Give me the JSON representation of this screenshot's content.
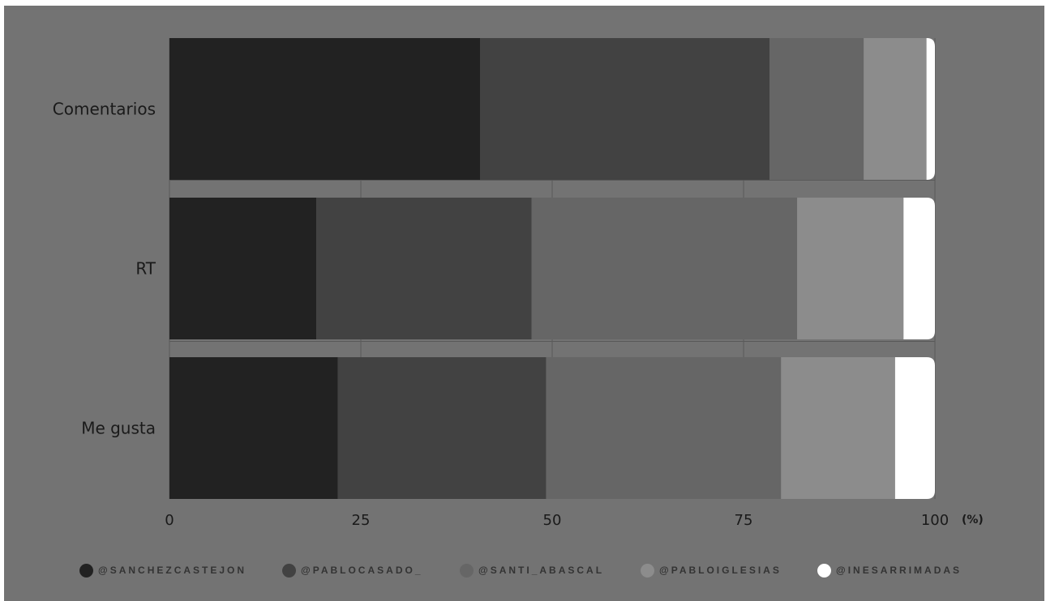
{
  "chart_data": {
    "type": "bar",
    "orientation": "horizontal",
    "stacked": true,
    "categories": [
      "Comentarios",
      "RT",
      "Me gusta"
    ],
    "series": [
      {
        "name": "@SANCHEZCASTEJON",
        "color": "#222222",
        "values": [
          40.6,
          19.2,
          22.0
        ]
      },
      {
        "name": "@PABLOCASADO_",
        "color": "#424242",
        "values": [
          37.8,
          28.1,
          27.2
        ]
      },
      {
        "name": "@SANTI_ABASCAL",
        "color": "#666666",
        "values": [
          12.3,
          34.7,
          30.7
        ]
      },
      {
        "name": "@PABLOIGLESIAS",
        "color": "#8c8c8c",
        "values": [
          8.2,
          13.9,
          14.9
        ]
      },
      {
        "name": "@INESARRIMADAS",
        "color": "#ffffff",
        "values": [
          1.1,
          4.1,
          5.2
        ]
      }
    ],
    "x_ticks": [
      "0",
      "25",
      "50",
      "75",
      "100"
    ],
    "x_tick_values": [
      0,
      25,
      50,
      75,
      100
    ],
    "xlim": [
      0,
      100
    ],
    "x_unit": "(%)",
    "grid": true,
    "legend_position": "bottom"
  }
}
